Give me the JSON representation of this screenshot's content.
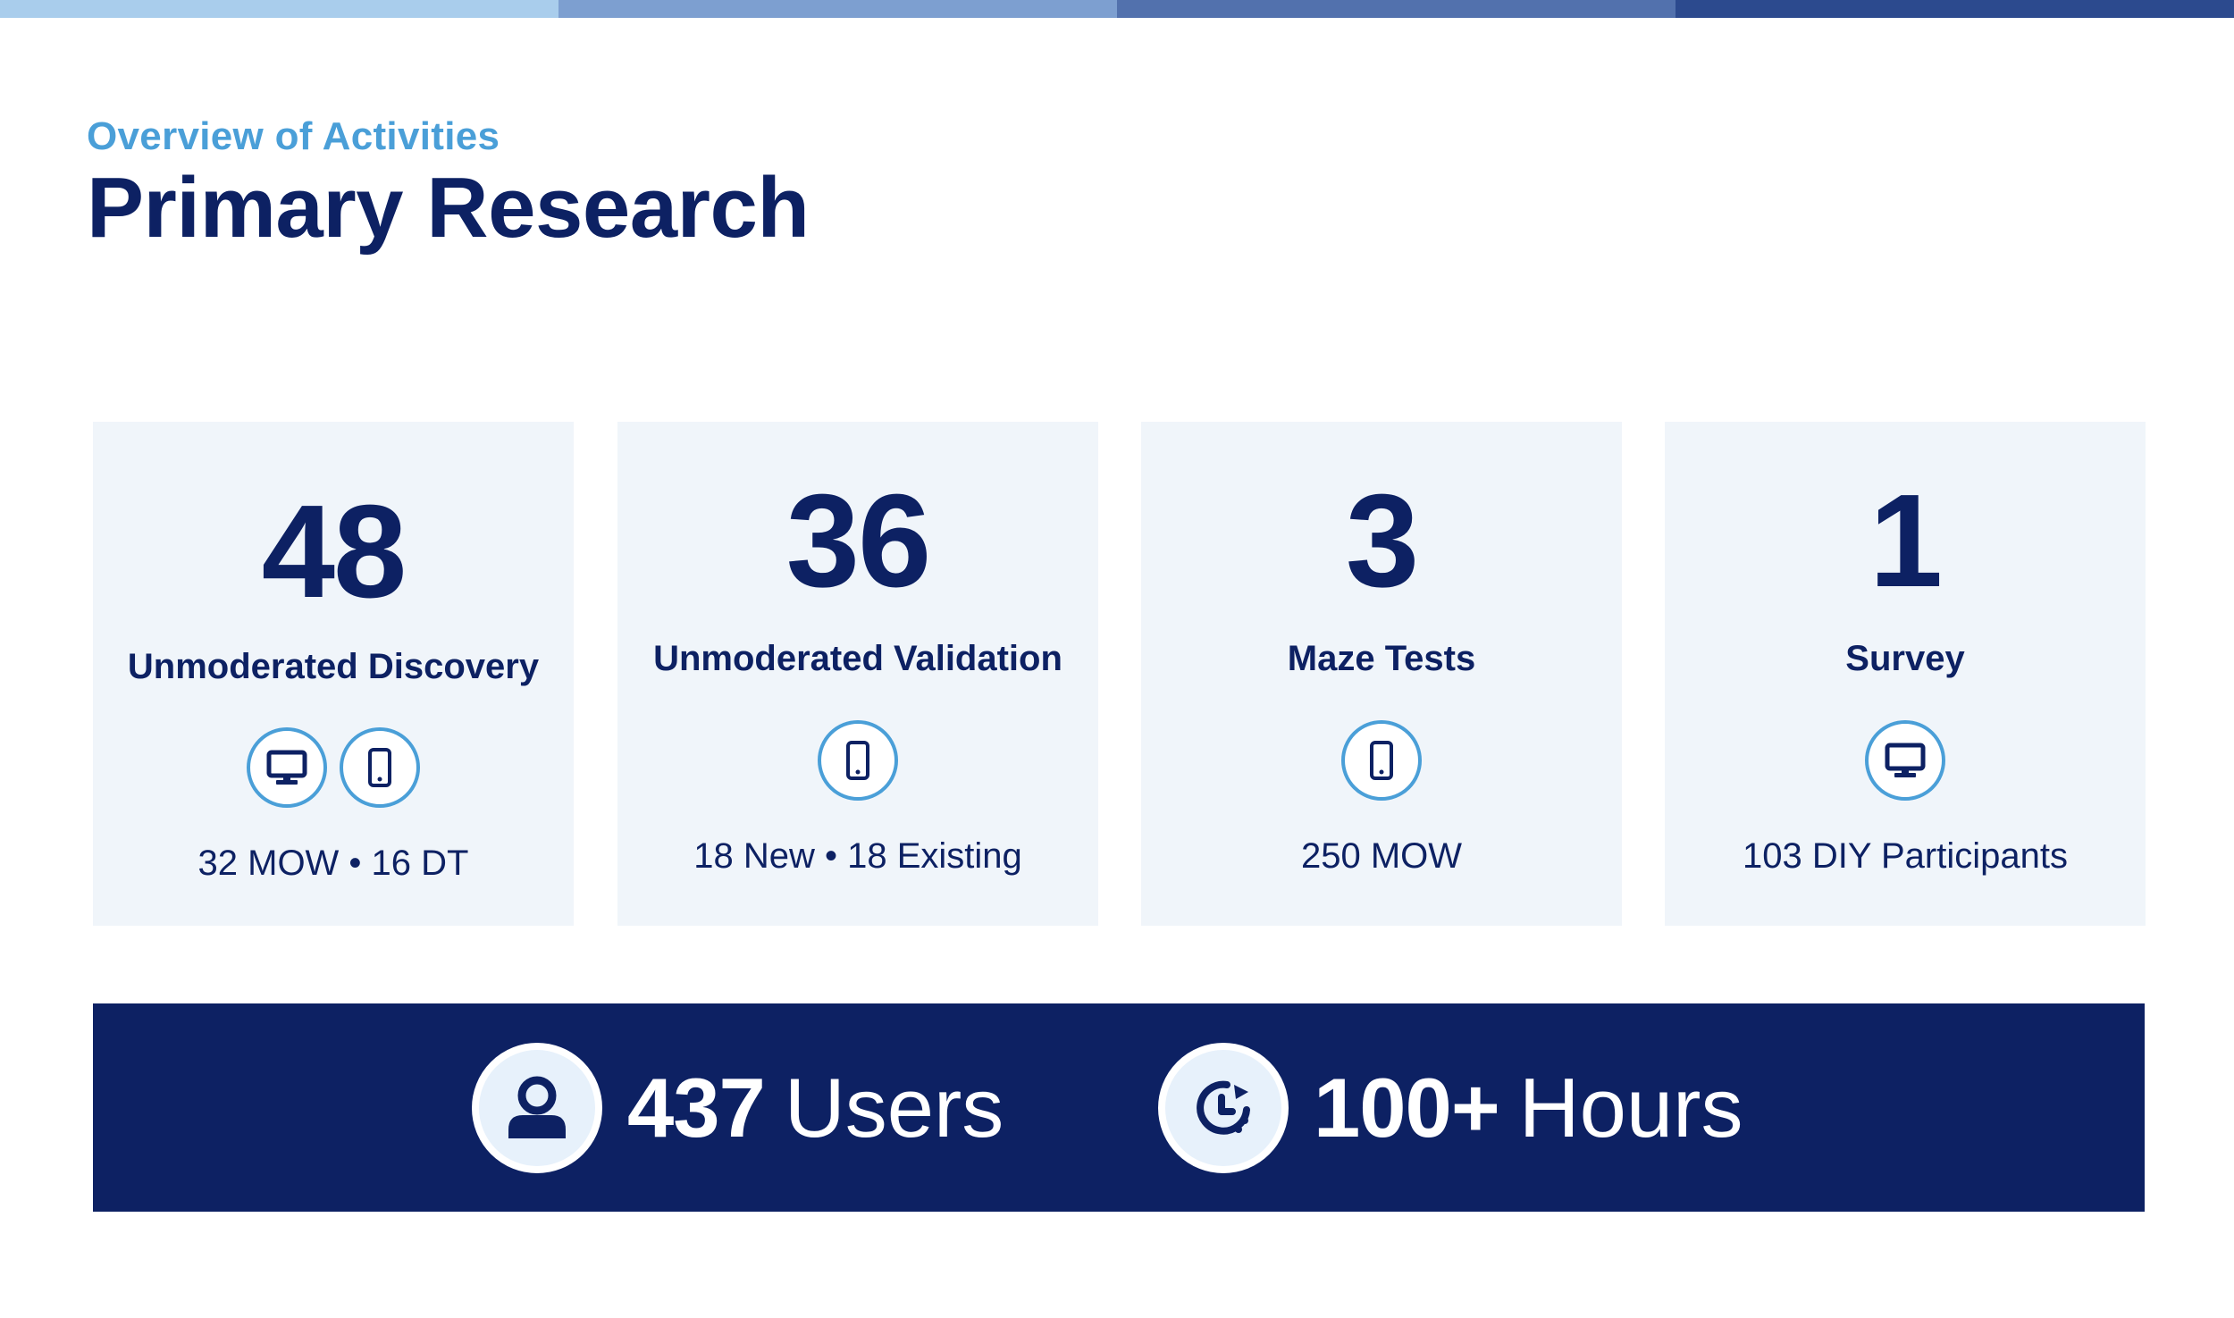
{
  "colors": {
    "navy": "#0d2163",
    "accent_blue": "#4a9fd8",
    "card_bg": "#f0f5fa",
    "top_bar_segments": [
      "#a9cdec",
      "#7d9fd0",
      "#5271ad",
      "#2c4a8e"
    ]
  },
  "header": {
    "eyebrow": "Overview of Activities",
    "title": "Primary Research"
  },
  "cards": [
    {
      "number": "48",
      "label": "Unmoderated Discovery",
      "icons": [
        "desktop-icon",
        "mobile-icon"
      ],
      "detail": "32 MOW •  16 DT"
    },
    {
      "number": "36",
      "label": "Unmoderated Validation",
      "icons": [
        "mobile-icon"
      ],
      "detail": "18 New • 18 Existing"
    },
    {
      "number": "3",
      "label": "Maze Tests",
      "icons": [
        "mobile-icon"
      ],
      "detail": "250 MOW"
    },
    {
      "number": "1",
      "label": "Survey",
      "icons": [
        "desktop-icon"
      ],
      "detail": "103 DIY Participants"
    }
  ],
  "summary": {
    "users": {
      "icon": "user-icon",
      "value": "437",
      "unit": "Users"
    },
    "hours": {
      "icon": "clock-icon",
      "value": "100+",
      "unit": "Hours"
    }
  }
}
